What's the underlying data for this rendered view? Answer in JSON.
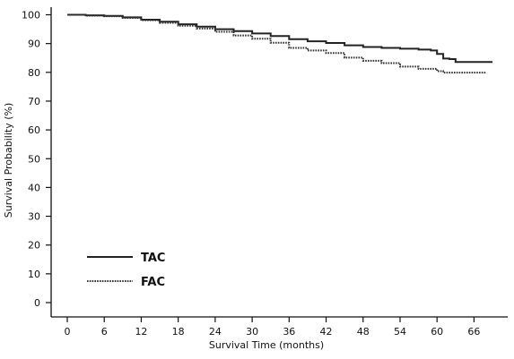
{
  "chart_data": {
    "type": "line",
    "title": "",
    "xlabel": "Survival Time (months)",
    "ylabel": "Survival Probability (%)",
    "xlim": [
      0,
      69
    ],
    "ylim": [
      0,
      100
    ],
    "xticks": [
      0,
      6,
      12,
      18,
      24,
      30,
      36,
      42,
      48,
      54,
      60,
      66
    ],
    "yticks": [
      0,
      10,
      20,
      30,
      40,
      50,
      60,
      70,
      80,
      90,
      100
    ],
    "grid": false,
    "legend_position": "bottom-left",
    "series": [
      {
        "name": "TAC",
        "style": "solid",
        "color": "#222222",
        "points": [
          [
            0,
            100
          ],
          [
            3,
            99.8
          ],
          [
            6,
            99.6
          ],
          [
            9,
            99.1
          ],
          [
            12,
            98.3
          ],
          [
            15,
            97.6
          ],
          [
            18,
            96.7
          ],
          [
            21,
            95.9
          ],
          [
            24,
            95.0
          ],
          [
            27,
            94.3
          ],
          [
            30,
            93.5
          ],
          [
            33,
            92.6
          ],
          [
            36,
            91.5
          ],
          [
            39,
            90.8
          ],
          [
            42,
            90.2
          ],
          [
            45,
            89.4
          ],
          [
            48,
            88.8
          ],
          [
            51,
            88.5
          ],
          [
            54,
            88.2
          ],
          [
            57,
            87.9
          ],
          [
            59,
            87.6
          ],
          [
            60,
            86.4
          ],
          [
            61,
            84.8
          ],
          [
            62,
            84.6
          ],
          [
            63,
            83.6
          ],
          [
            66,
            83.6
          ],
          [
            69,
            83.6
          ]
        ]
      },
      {
        "name": "FAC",
        "style": "dotted",
        "color": "#333333",
        "points": [
          [
            0,
            100
          ],
          [
            3,
            99.7
          ],
          [
            6,
            99.5
          ],
          [
            9,
            98.9
          ],
          [
            12,
            98.1
          ],
          [
            15,
            97.2
          ],
          [
            18,
            96.2
          ],
          [
            21,
            95.2
          ],
          [
            24,
            94.1
          ],
          [
            27,
            92.8
          ],
          [
            30,
            91.7
          ],
          [
            33,
            90.3
          ],
          [
            36,
            88.5
          ],
          [
            39,
            87.6
          ],
          [
            42,
            86.7
          ],
          [
            45,
            85.1
          ],
          [
            48,
            84.0
          ],
          [
            51,
            83.2
          ],
          [
            54,
            82.0
          ],
          [
            57,
            81.2
          ],
          [
            60,
            80.4
          ],
          [
            61,
            79.9
          ],
          [
            63,
            79.9
          ],
          [
            66,
            79.9
          ],
          [
            68,
            79.9
          ]
        ]
      }
    ]
  }
}
